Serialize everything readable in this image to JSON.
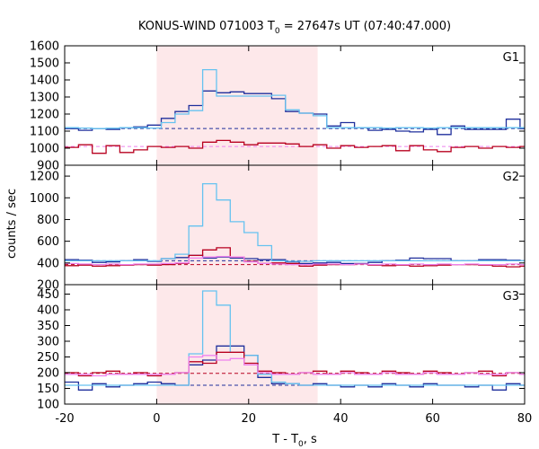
{
  "chart_data": {
    "type": "line",
    "title_prefix": "KONUS-WIND 071003 T",
    "title_sub": "0",
    "title_suffix": " = 27647s UT (07:40:47.000)",
    "xlabel_prefix": "T - T",
    "xlabel_sub": "0",
    "xlabel_suffix": ", s",
    "ylabel": "counts / sec",
    "xlim": [
      -20,
      80
    ],
    "xticks": [
      -20,
      0,
      20,
      40,
      60,
      80
    ],
    "grid": false,
    "highlight": {
      "x_start": 0,
      "x_end": 35,
      "color": "#fde8ea"
    },
    "colors": {
      "dark_blue": "#1f2f9c",
      "light_blue": "#66c2f0",
      "dark_red": "#b8001f",
      "magenta": "#ee82ee"
    },
    "panels": [
      {
        "label": "G1",
        "ylim": [
          900,
          1600
        ],
        "yticks": [
          900,
          1000,
          1100,
          1200,
          1300,
          1400,
          1500,
          1600
        ],
        "background_levels": [
          {
            "name": "",
            "value": 1115,
            "color": "#1f2f9c"
          },
          {
            "name": "",
            "value": 1010,
            "color": "#ee82ee"
          }
        ],
        "series": [
          {
            "name": "",
            "color": "#1f2f9c",
            "x": [
              -20,
              -17,
              -14,
              -11,
              -8,
              -5,
              -2,
              1,
              4,
              7,
              10,
              13,
              16,
              19,
              22,
              25,
              28,
              31,
              34,
              37,
              40,
              43,
              46,
              49,
              52,
              55,
              58,
              61,
              64,
              67,
              70,
              73,
              76,
              79
            ],
            "y": [
              1115,
              1105,
              1115,
              1110,
              1120,
              1125,
              1135,
              1175,
              1215,
              1250,
              1335,
              1325,
              1330,
              1320,
              1320,
              1290,
              1215,
              1205,
              1200,
              1130,
              1150,
              1120,
              1105,
              1110,
              1100,
              1095,
              1110,
              1080,
              1130,
              1110,
              1110,
              1110,
              1170,
              1115
            ]
          },
          {
            "name": "",
            "color": "#66c2f0",
            "x": [
              -20,
              -17,
              -14,
              -11,
              -8,
              -5,
              -2,
              1,
              4,
              7,
              10,
              13,
              16,
              19,
              22,
              25,
              28,
              31,
              34,
              37,
              40,
              43,
              46,
              49,
              52,
              55,
              58,
              61,
              64,
              67,
              70,
              73,
              76,
              79
            ],
            "y": [
              1120,
              1118,
              1115,
              1117,
              1120,
              1120,
              1118,
              1150,
              1200,
              1220,
              1460,
              1305,
              1305,
              1305,
              1305,
              1310,
              1225,
              1205,
              1190,
              1120,
              1120,
              1120,
              1120,
              1118,
              1120,
              1120,
              1118,
              1120,
              1120,
              1120,
              1120,
              1120,
              1120,
              1120
            ]
          },
          {
            "name": "",
            "color": "#b8001f",
            "x": [
              -20,
              -17,
              -14,
              -11,
              -8,
              -5,
              -2,
              1,
              4,
              7,
              10,
              13,
              16,
              19,
              22,
              25,
              28,
              31,
              34,
              37,
              40,
              43,
              46,
              49,
              52,
              55,
              58,
              61,
              64,
              67,
              70,
              73,
              76,
              79
            ],
            "y": [
              1005,
              1020,
              970,
              1015,
              975,
              990,
              1010,
              1005,
              1010,
              1000,
              1035,
              1045,
              1035,
              1020,
              1030,
              1030,
              1025,
              1010,
              1020,
              1000,
              1015,
              1005,
              1010,
              1015,
              985,
              1015,
              990,
              980,
              1005,
              1010,
              1000,
              1010,
              1005,
              1010
            ]
          }
        ]
      },
      {
        "label": "G2",
        "ylim": [
          200,
          1300
        ],
        "yticks": [
          200,
          400,
          600,
          800,
          1000,
          1200
        ],
        "background_levels": [
          {
            "name": "",
            "value": 420,
            "color": "#1f2f9c"
          },
          {
            "name": "",
            "value": 385,
            "color": "#b8001f"
          }
        ],
        "series": [
          {
            "name": "",
            "color": "#1f2f9c",
            "x": [
              -20,
              -17,
              -14,
              -11,
              -8,
              -5,
              -2,
              1,
              4,
              7,
              10,
              13,
              16,
              19,
              22,
              25,
              28,
              31,
              34,
              37,
              40,
              43,
              46,
              49,
              52,
              55,
              58,
              61,
              64,
              67,
              70,
              73,
              76,
              79
            ],
            "y": [
              430,
              425,
              405,
              410,
              420,
              430,
              415,
              440,
              450,
              470,
              445,
              455,
              445,
              440,
              430,
              430,
              410,
              395,
              400,
              405,
              395,
              395,
              405,
              420,
              425,
              445,
              440,
              440,
              420,
              420,
              430,
              430,
              425,
              420
            ]
          },
          {
            "name": "",
            "color": "#66c2f0",
            "x": [
              -20,
              -17,
              -14,
              -11,
              -8,
              -5,
              -2,
              1,
              4,
              7,
              10,
              13,
              16,
              19,
              22,
              25,
              28,
              31,
              34,
              37,
              40,
              43,
              46,
              49,
              52,
              55,
              58,
              61,
              64,
              67,
              70,
              73,
              76,
              79
            ],
            "y": [
              420,
              420,
              420,
              420,
              420,
              420,
              420,
              440,
              480,
              740,
              1130,
              980,
              780,
              680,
              560,
              420,
              415,
              415,
              420,
              420,
              420,
              420,
              420,
              420,
              420,
              420,
              420,
              420,
              420,
              420,
              420,
              420,
              420,
              420
            ]
          },
          {
            "name": "",
            "color": "#b8001f",
            "x": [
              -20,
              -17,
              -14,
              -11,
              -8,
              -5,
              -2,
              1,
              4,
              7,
              10,
              13,
              16,
              19,
              22,
              25,
              28,
              31,
              34,
              37,
              40,
              43,
              46,
              49,
              52,
              55,
              58,
              61,
              64,
              67,
              70,
              73,
              76,
              79
            ],
            "y": [
              375,
              380,
              370,
              375,
              380,
              385,
              380,
              385,
              395,
              470,
              520,
              540,
              455,
              415,
              395,
              400,
              395,
              370,
              380,
              385,
              385,
              390,
              380,
              375,
              380,
              370,
              375,
              380,
              385,
              385,
              380,
              370,
              365,
              370
            ]
          },
          {
            "name": "",
            "color": "#ee82ee",
            "x": [
              -20,
              -17,
              -14,
              -11,
              -8,
              -5,
              -2,
              1,
              4,
              7,
              10,
              13,
              16,
              19,
              22,
              25,
              28,
              31,
              34,
              37,
              40,
              43,
              46,
              49,
              52,
              55,
              58,
              61,
              64,
              67,
              70,
              73,
              76,
              79
            ],
            "y": [
              395,
              390,
              385,
              390,
              385,
              390,
              390,
              395,
              400,
              445,
              455,
              460,
              455,
              410,
              395,
              390,
              385,
              385,
              390,
              390,
              385,
              390,
              385,
              390,
              385,
              390,
              385,
              390,
              385,
              390,
              385,
              385,
              390,
              385
            ]
          }
        ]
      },
      {
        "label": "G3",
        "ylim": [
          100,
          480
        ],
        "yticks": [
          100,
          150,
          200,
          250,
          300,
          350,
          400,
          450
        ],
        "background_levels": [
          {
            "name": "",
            "value": 198,
            "color": "#b8001f"
          },
          {
            "name": "",
            "value": 160,
            "color": "#1f2f9c"
          }
        ],
        "series": [
          {
            "name": "",
            "color": "#1f2f9c",
            "x": [
              -20,
              -17,
              -14,
              -11,
              -8,
              -5,
              -2,
              1,
              4,
              7,
              10,
              13,
              16,
              19,
              22,
              25,
              28,
              31,
              34,
              37,
              40,
              43,
              46,
              49,
              52,
              55,
              58,
              61,
              64,
              67,
              70,
              73,
              76,
              79
            ],
            "y": [
              170,
              145,
              165,
              155,
              160,
              165,
              170,
              165,
              160,
              225,
              240,
              285,
              285,
              255,
              185,
              165,
              165,
              160,
              165,
              160,
              155,
              160,
              155,
              165,
              160,
              155,
              165,
              160,
              160,
              155,
              160,
              145,
              165,
              160
            ]
          },
          {
            "name": "",
            "color": "#66c2f0",
            "x": [
              -20,
              -17,
              -14,
              -11,
              -8,
              -5,
              -2,
              1,
              4,
              7,
              10,
              13,
              16,
              19,
              22,
              25,
              28,
              31,
              34,
              37,
              40,
              43,
              46,
              49,
              52,
              55,
              58,
              61,
              64,
              67,
              70,
              73,
              76,
              79
            ],
            "y": [
              160,
              160,
              160,
              160,
              160,
              160,
              160,
              160,
              160,
              260,
              460,
              415,
              265,
              255,
              195,
              170,
              165,
              160,
              160,
              160,
              160,
              160,
              160,
              160,
              160,
              160,
              160,
              160,
              160,
              160,
              160,
              160,
              160,
              160
            ]
          },
          {
            "name": "",
            "color": "#b8001f",
            "x": [
              -20,
              -17,
              -14,
              -11,
              -8,
              -5,
              -2,
              1,
              4,
              7,
              10,
              13,
              16,
              19,
              22,
              25,
              28,
              31,
              34,
              37,
              40,
              43,
              46,
              49,
              52,
              55,
              58,
              61,
              64,
              67,
              70,
              73,
              76,
              79
            ],
            "y": [
              200,
              190,
              200,
              205,
              195,
              200,
              190,
              195,
              200,
              235,
              230,
              265,
              265,
              230,
              205,
              200,
              195,
              200,
              205,
              195,
              205,
              200,
              195,
              205,
              200,
              195,
              205,
              200,
              195,
              200,
              205,
              190,
              200,
              195
            ]
          },
          {
            "name": "",
            "color": "#ee82ee",
            "x": [
              -20,
              -17,
              -14,
              -11,
              -8,
              -5,
              -2,
              1,
              4,
              7,
              10,
              13,
              16,
              19,
              22,
              25,
              28,
              31,
              34,
              37,
              40,
              43,
              46,
              49,
              52,
              55,
              58,
              61,
              64,
              67,
              70,
              73,
              76,
              79
            ],
            "y": [
              195,
              195,
              190,
              195,
              195,
              195,
              195,
              195,
              200,
              250,
              255,
              240,
              245,
              225,
              200,
              195,
              195,
              200,
              195,
              195,
              200,
              195,
              195,
              200,
              195,
              195,
              200,
              195,
              195,
              200,
              195,
              195,
              200,
              195
            ]
          }
        ]
      }
    ]
  }
}
